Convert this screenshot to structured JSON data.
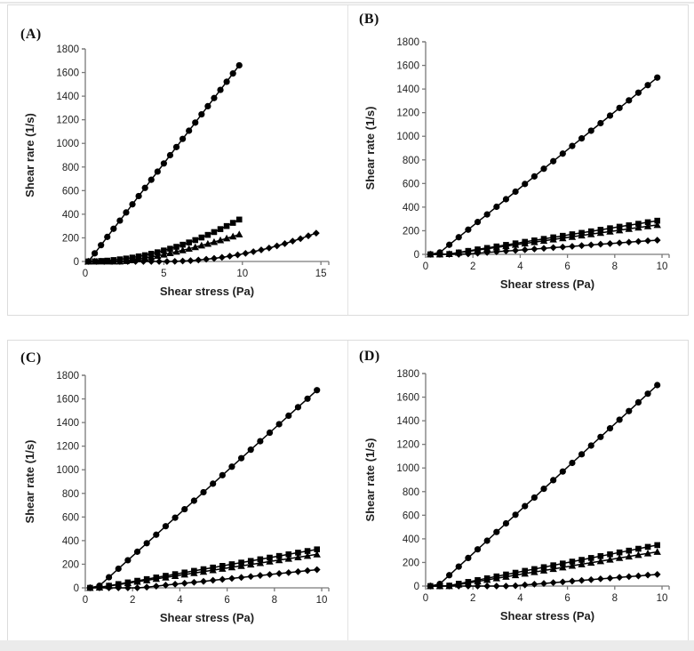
{
  "colors": {
    "series": "#000000",
    "axis": "#7a7a7a",
    "tick_text": "#1f1f1f",
    "panel_border": "#dcdcdc",
    "page_background": "#ffffff",
    "bottom_strip": "#ebebeb"
  },
  "chart_data": [
    {
      "type": "scatter",
      "panel": "(A)",
      "xlabel": "Shear stress (Pa)",
      "ylabel": "Shear rare (1/s)",
      "xlim": [
        0,
        15.5
      ],
      "ylim": [
        0,
        1800
      ],
      "xticks": [
        0,
        5,
        10,
        15
      ],
      "yticks": [
        0,
        200,
        400,
        600,
        800,
        1000,
        1200,
        1400,
        1600,
        1800
      ],
      "grid": false,
      "legend": "none",
      "series": [
        {
          "name": "circles",
          "marker": "circle",
          "x": [
            0.2,
            0.6,
            1,
            1.4,
            1.8,
            2.2,
            2.6,
            3,
            3.4,
            3.8,
            4.2,
            4.6,
            5,
            5.4,
            5.8,
            6.2,
            6.6,
            7,
            7.4,
            7.8,
            8.2,
            8.6,
            9,
            9.4,
            9.8
          ],
          "y": [
            0,
            69,
            138,
            208,
            277,
            346,
            415,
            484,
            554,
            623,
            692,
            761,
            830,
            900,
            969,
            1038,
            1107,
            1176,
            1246,
            1315,
            1384,
            1453,
            1522,
            1592,
            1661
          ]
        },
        {
          "name": "squares",
          "marker": "square",
          "x": [
            0.2,
            0.6,
            1,
            1.4,
            1.8,
            2.2,
            2.6,
            3,
            3.4,
            3.8,
            4.2,
            4.6,
            5,
            5.4,
            5.8,
            6.2,
            6.6,
            7,
            7.4,
            7.8,
            8.2,
            8.6,
            9,
            9.4,
            9.8
          ],
          "y": [
            0,
            1,
            4,
            7,
            12,
            18,
            25,
            33,
            43,
            53,
            65,
            78,
            93,
            108,
            124,
            142,
            161,
            181,
            203,
            225,
            249,
            274,
            300,
            327,
            355
          ]
        },
        {
          "name": "triangles",
          "marker": "triangle",
          "x": [
            0.2,
            0.6,
            1,
            1.4,
            1.8,
            2.2,
            2.6,
            3,
            3.4,
            3.8,
            4.2,
            4.6,
            5,
            5.4,
            5.8,
            6.2,
            6.6,
            7,
            7.4,
            7.8,
            8.2,
            8.6,
            9,
            9.4,
            9.8
          ],
          "y": [
            0,
            0,
            0,
            0,
            0,
            0,
            4,
            11,
            19,
            28,
            37,
            48,
            59,
            71,
            83,
            95,
            108,
            122,
            136,
            150,
            165,
            180,
            196,
            212,
            230
          ]
        },
        {
          "name": "diamonds",
          "marker": "diamond",
          "x": [
            0.2,
            0.7,
            1.2,
            1.7,
            2.2,
            2.7,
            3.2,
            3.7,
            4.2,
            4.7,
            5.2,
            5.7,
            6.2,
            6.7,
            7.2,
            7.7,
            8.2,
            8.7,
            9.2,
            9.7,
            10.2,
            10.7,
            11.2,
            11.7,
            12.2,
            12.7,
            13.2,
            13.7,
            14.2,
            14.7
          ],
          "y": [
            0,
            0,
            0,
            0,
            0,
            0,
            0,
            0,
            0,
            0,
            0,
            1,
            4,
            7,
            12,
            19,
            26,
            35,
            45,
            56,
            69,
            83,
            98,
            114,
            132,
            151,
            172,
            193,
            217,
            240
          ]
        }
      ]
    },
    {
      "type": "scatter",
      "panel": "(B)",
      "xlabel": "Shear stress (Pa)",
      "ylabel": "Shear rate (1/s)",
      "xlim": [
        0,
        10.3
      ],
      "ylim": [
        0,
        1800
      ],
      "xticks": [
        0,
        2,
        4,
        6,
        8,
        10
      ],
      "yticks": [
        0,
        200,
        400,
        600,
        800,
        1000,
        1200,
        1400,
        1600,
        1800
      ],
      "grid": false,
      "legend": "none",
      "series": [
        {
          "name": "circles",
          "marker": "circle",
          "x": [
            0.2,
            0.6,
            1,
            1.4,
            1.8,
            2.2,
            2.6,
            3,
            3.4,
            3.8,
            4.2,
            4.6,
            5,
            5.4,
            5.8,
            6.2,
            6.6,
            7,
            7.4,
            7.8,
            8.2,
            8.6,
            9,
            9.4,
            9.8
          ],
          "y": [
            0,
            16,
            81,
            145,
            209,
            274,
            338,
            403,
            467,
            531,
            596,
            660,
            725,
            789,
            853,
            918,
            982,
            1047,
            1111,
            1175,
            1240,
            1304,
            1369,
            1433,
            1497
          ]
        },
        {
          "name": "squares",
          "marker": "square",
          "x": [
            0.2,
            0.6,
            1,
            1.4,
            1.8,
            2.2,
            2.6,
            3,
            3.4,
            3.8,
            4.2,
            4.6,
            5,
            5.4,
            5.8,
            6.2,
            6.6,
            7,
            7.4,
            7.8,
            8.2,
            8.6,
            9,
            9.4,
            9.8
          ],
          "y": [
            0,
            0,
            3,
            16,
            29,
            42,
            54,
            67,
            80,
            93,
            106,
            118,
            131,
            144,
            157,
            170,
            182,
            195,
            208,
            221,
            234,
            246,
            259,
            272,
            285
          ]
        },
        {
          "name": "triangles",
          "marker": "triangle",
          "x": [
            0.2,
            0.6,
            1,
            1.4,
            1.8,
            2.2,
            2.6,
            3,
            3.4,
            3.8,
            4.2,
            4.6,
            5,
            5.4,
            5.8,
            6.2,
            6.6,
            7,
            7.4,
            7.8,
            8.2,
            8.6,
            9,
            9.4,
            9.8
          ],
          "y": [
            0,
            0,
            3,
            14,
            25,
            36,
            48,
            59,
            70,
            81,
            92,
            104,
            115,
            126,
            137,
            148,
            160,
            171,
            182,
            193,
            204,
            216,
            227,
            238,
            249
          ]
        },
        {
          "name": "diamonds",
          "marker": "diamond",
          "x": [
            0.2,
            0.6,
            1,
            1.4,
            1.8,
            2.2,
            2.6,
            3,
            3.4,
            3.8,
            4.2,
            4.6,
            5,
            5.4,
            5.8,
            6.2,
            6.6,
            7,
            7.4,
            7.8,
            8.2,
            8.6,
            9,
            9.4,
            9.8
          ],
          "y": [
            0,
            0,
            0,
            0,
            4,
            10,
            16,
            22,
            28,
            33,
            39,
            45,
            51,
            57,
            62,
            68,
            74,
            80,
            86,
            91,
            97,
            103,
            109,
            115,
            120
          ]
        }
      ]
    },
    {
      "type": "scatter",
      "panel": "(C)",
      "xlabel": "Shear stress (Pa)",
      "ylabel": "Shear rate (1/s)",
      "xlim": [
        0,
        10.3
      ],
      "ylim": [
        0,
        1800
      ],
      "xticks": [
        0,
        2,
        4,
        6,
        8,
        10
      ],
      "yticks": [
        0,
        200,
        400,
        600,
        800,
        1000,
        1200,
        1400,
        1600,
        1800
      ],
      "grid": false,
      "legend": "none",
      "series": [
        {
          "name": "circles",
          "marker": "circle",
          "x": [
            0.2,
            0.6,
            1,
            1.4,
            1.8,
            2.2,
            2.6,
            3,
            3.4,
            3.8,
            4.2,
            4.6,
            5,
            5.4,
            5.8,
            6.2,
            6.6,
            7,
            7.4,
            7.8,
            8.2,
            8.6,
            9,
            9.4,
            9.8
          ],
          "y": [
            0,
            18,
            90,
            162,
            234,
            306,
            378,
            450,
            522,
            594,
            666,
            738,
            810,
            882,
            954,
            1026,
            1098,
            1170,
            1242,
            1314,
            1386,
            1458,
            1530,
            1602,
            1674
          ]
        },
        {
          "name": "squares",
          "marker": "square",
          "x": [
            0.2,
            0.6,
            1,
            1.4,
            1.8,
            2.2,
            2.6,
            3,
            3.4,
            3.8,
            4.2,
            4.6,
            5,
            5.4,
            5.8,
            6.2,
            6.6,
            7,
            7.4,
            7.8,
            8.2,
            8.6,
            9,
            9.4,
            9.8
          ],
          "y": [
            0,
            4,
            18,
            32,
            46,
            60,
            74,
            88,
            102,
            116,
            130,
            144,
            158,
            172,
            186,
            200,
            214,
            228,
            242,
            256,
            270,
            284,
            298,
            312,
            326
          ]
        },
        {
          "name": "triangles",
          "marker": "triangle",
          "x": [
            0.2,
            0.6,
            1,
            1.4,
            1.8,
            2.2,
            2.6,
            3,
            3.4,
            3.8,
            4.2,
            4.6,
            5,
            5.4,
            5.8,
            6.2,
            6.6,
            7,
            7.4,
            7.8,
            8.2,
            8.6,
            9,
            9.4,
            9.8
          ],
          "y": [
            0,
            3,
            15,
            27,
            40,
            52,
            64,
            76,
            88,
            101,
            113,
            125,
            137,
            150,
            162,
            174,
            186,
            198,
            210,
            223,
            235,
            247,
            259,
            271,
            284
          ]
        },
        {
          "name": "diamonds",
          "marker": "diamond",
          "x": [
            0.2,
            0.6,
            1,
            1.4,
            1.8,
            2.2,
            2.6,
            3,
            3.4,
            3.8,
            4.2,
            4.6,
            5,
            5.4,
            5.8,
            6.2,
            6.6,
            7,
            7.4,
            7.8,
            8.2,
            8.6,
            9,
            9.4,
            9.8
          ],
          "y": [
            0,
            0,
            0,
            0,
            0,
            0,
            6,
            14,
            23,
            31,
            39,
            47,
            55,
            64,
            72,
            80,
            88,
            96,
            105,
            113,
            121,
            129,
            137,
            146,
            154
          ]
        }
      ]
    },
    {
      "type": "scatter",
      "panel": "(D)",
      "xlabel": "Shear stress (Pa)",
      "ylabel": "Shear rate (1/s)",
      "xlim": [
        0,
        10.3
      ],
      "ylim": [
        0,
        1800
      ],
      "xticks": [
        0,
        2,
        4,
        6,
        8,
        10
      ],
      "yticks": [
        0,
        200,
        400,
        600,
        800,
        1000,
        1200,
        1400,
        1600,
        1800
      ],
      "grid": false,
      "legend": "none",
      "series": [
        {
          "name": "circles",
          "marker": "circle",
          "x": [
            0.2,
            0.6,
            1,
            1.4,
            1.8,
            2.2,
            2.6,
            3,
            3.4,
            3.8,
            4.2,
            4.6,
            5,
            5.4,
            5.8,
            6.2,
            6.6,
            7,
            7.4,
            7.8,
            8.2,
            8.6,
            9,
            9.4,
            9.8
          ],
          "y": [
            0,
            18,
            92,
            165,
            238,
            311,
            384,
            458,
            531,
            604,
            677,
            750,
            824,
            897,
            970,
            1043,
            1116,
            1190,
            1263,
            1336,
            1409,
            1482,
            1556,
            1629,
            1702
          ]
        },
        {
          "name": "squares",
          "marker": "square",
          "x": [
            0.2,
            0.6,
            1,
            1.4,
            1.8,
            2.2,
            2.6,
            3,
            3.4,
            3.8,
            4.2,
            4.6,
            5,
            5.4,
            5.8,
            6.2,
            6.6,
            7,
            7.4,
            7.8,
            8.2,
            8.6,
            9,
            9.4,
            9.8
          ],
          "y": [
            0,
            0,
            4,
            20,
            35,
            51,
            66,
            82,
            98,
            113,
            129,
            144,
            160,
            176,
            191,
            207,
            222,
            238,
            254,
            269,
            285,
            300,
            316,
            332,
            347
          ]
        },
        {
          "name": "triangles",
          "marker": "triangle",
          "x": [
            0.2,
            0.6,
            1,
            1.4,
            1.8,
            2.2,
            2.6,
            3,
            3.4,
            3.8,
            4.2,
            4.6,
            5,
            5.4,
            5.8,
            6.2,
            6.6,
            7,
            7.4,
            7.8,
            8.2,
            8.6,
            9,
            9.4,
            9.8
          ],
          "y": [
            0,
            0,
            0,
            13,
            26,
            40,
            53,
            66,
            79,
            92,
            106,
            119,
            132,
            145,
            158,
            172,
            185,
            198,
            211,
            224,
            238,
            251,
            264,
            277,
            290
          ]
        },
        {
          "name": "diamonds",
          "marker": "diamond",
          "x": [
            0.2,
            0.6,
            1,
            1.4,
            1.8,
            2.2,
            2.6,
            3,
            3.4,
            3.8,
            4.2,
            4.6,
            5,
            5.4,
            5.8,
            6.2,
            6.6,
            7,
            7.4,
            7.8,
            8.2,
            8.6,
            9,
            9.4,
            9.8
          ],
          "y": [
            0,
            0,
            0,
            0,
            0,
            0,
            0,
            0,
            0,
            3,
            10,
            16,
            22,
            29,
            35,
            42,
            48,
            54,
            61,
            67,
            74,
            80,
            86,
            93,
            99
          ]
        }
      ]
    }
  ]
}
